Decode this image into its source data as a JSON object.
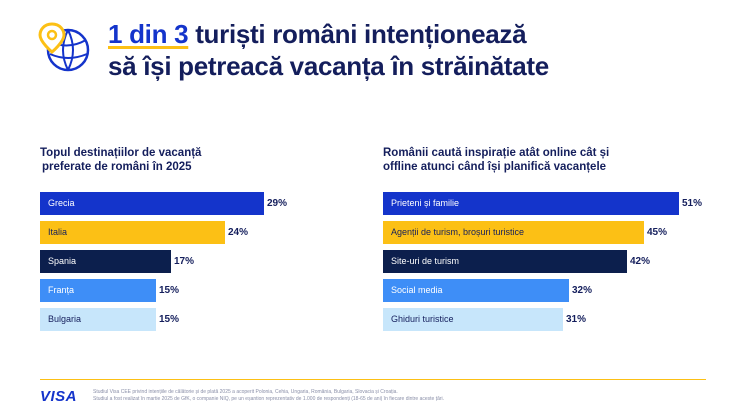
{
  "headline": {
    "accent": "1 din 3",
    "line1_rest": " turiști români intenționează",
    "line2": "să își petreacă vacanța în străinătate"
  },
  "colors": {
    "navy": "#141e5c",
    "visa_blue": "#1434cb",
    "yellow": "#fcc015",
    "dark_navy": "#0c1f4d",
    "light_blue": "#3e8ef7",
    "pale_blue": "#c7e6fb"
  },
  "chart_data": [
    {
      "type": "bar",
      "orientation": "horizontal",
      "title": [
        "Topul destinațiilor de vacanță",
        "preferate de români în 2025"
      ],
      "categories": [
        "Grecia",
        "Italia",
        "Spania",
        "Franța",
        "Bulgaria"
      ],
      "values": [
        29,
        24,
        17,
        15,
        15
      ],
      "value_labels": [
        "29%",
        "24%",
        "17%",
        "15%",
        "15%"
      ],
      "bar_colors": [
        "#1434cb",
        "#fcc015",
        "#0c1f4d",
        "#3e8ef7",
        "#c7e6fb"
      ],
      "label_colors": [
        "#ffffff",
        "#141e5c",
        "#ffffff",
        "#ffffff",
        "#141e5c"
      ],
      "xlim": [
        0,
        29
      ]
    },
    {
      "type": "bar",
      "orientation": "horizontal",
      "title": [
        "Românii caută inspirație atât online cât și",
        "offline atunci când își planifică vacanțele"
      ],
      "categories": [
        "Prieteni și familie",
        "Agenții de turism, broșuri turistice",
        "Site-uri de turism",
        "Social media",
        "Ghiduri turistice"
      ],
      "values": [
        51,
        45,
        42,
        32,
        31
      ],
      "value_labels": [
        "51%",
        "45%",
        "42%",
        "32%",
        "31%"
      ],
      "bar_colors": [
        "#1434cb",
        "#fcc015",
        "#0c1f4d",
        "#3e8ef7",
        "#c7e6fb"
      ],
      "label_colors": [
        "#ffffff",
        "#141e5c",
        "#ffffff",
        "#ffffff",
        "#141e5c"
      ],
      "xlim": [
        0,
        51
      ]
    }
  ],
  "footer": {
    "logo": "VISA",
    "note_line1": "Studiul Visa CEE privind intențiile de călătorie și de plată 2025 a acoperit Polonia, Cehia, Ungaria, România, Bulgaria, Slovacia și Croația.",
    "note_line2": "Studiul a fost realizat în martie 2025 de GfK, o companie NIQ, pe un eșantion reprezentativ de 1.000 de respondenți (18-65 de ani) în fiecare dintre aceste țări."
  },
  "icons": {
    "headline": "globe-pin-icon"
  }
}
